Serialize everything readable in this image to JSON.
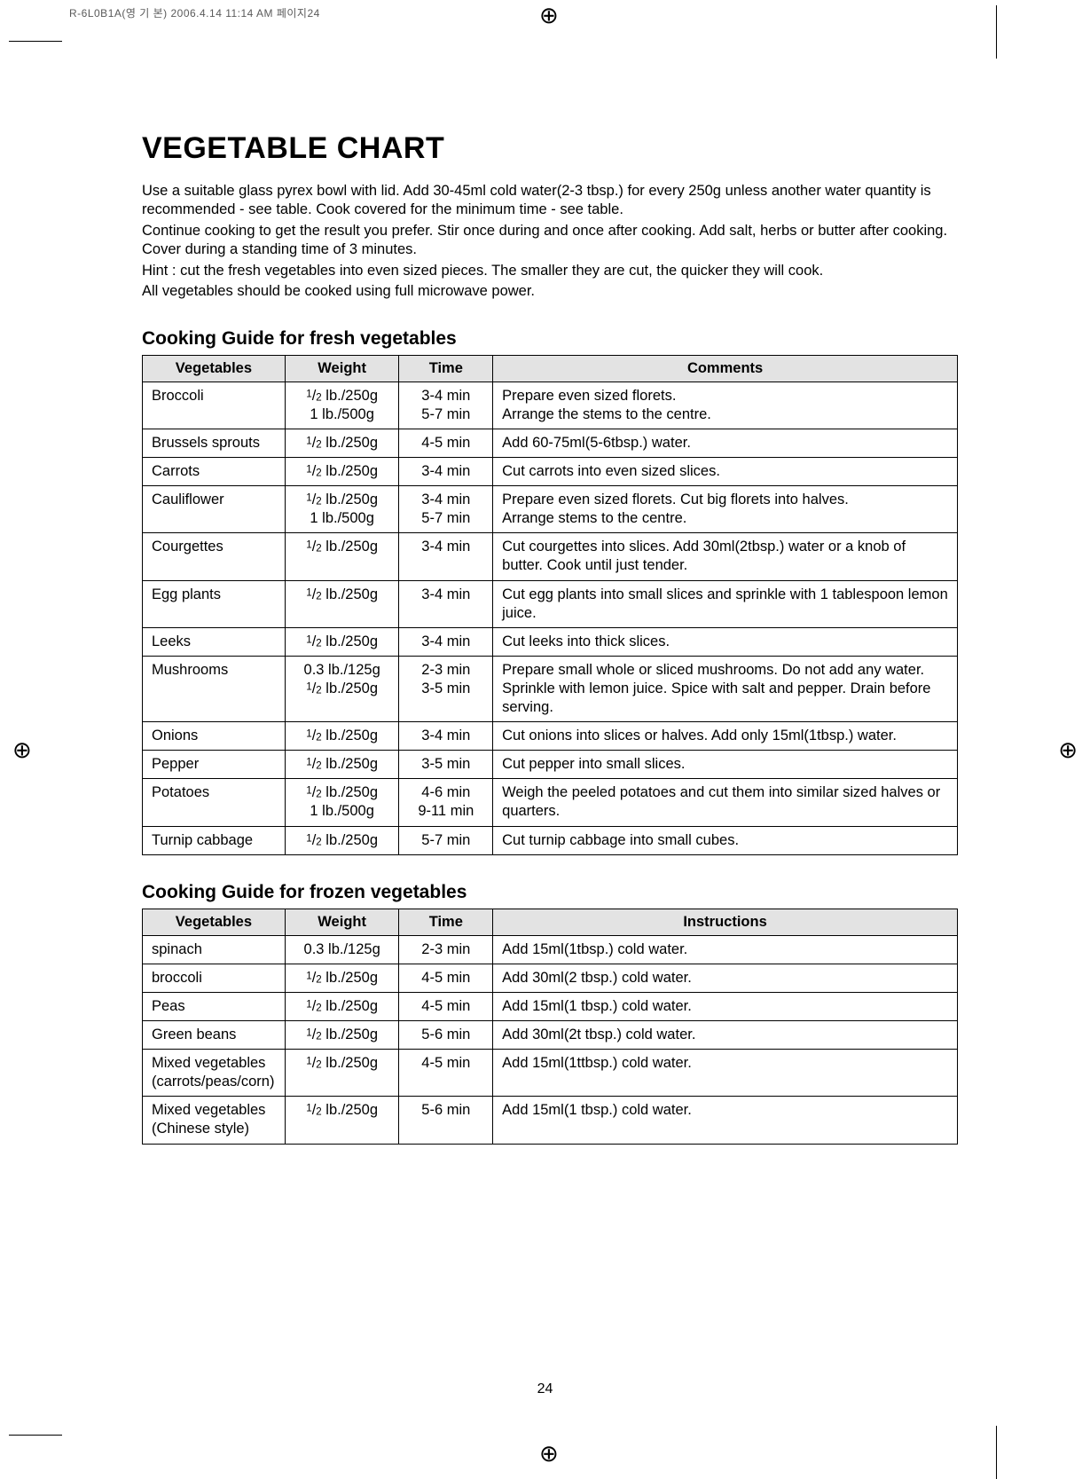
{
  "print_header": "R-6L0B1A(영 기 본)  2006.4.14 11:14 AM  페이지24",
  "title": "VEGETABLE CHART",
  "intro": [
    "Use a suitable glass pyrex bowl with lid. Add 30-45ml cold water(2-3 tbsp.) for every 250g unless another water quantity is recommended - see table. Cook covered for the minimum time - see table.",
    "Continue cooking to get the result you prefer. Stir once during and once after cooking. Add salt, herbs or butter after cooking. Cover during a standing time of 3 minutes.",
    "Hint : cut the fresh vegetables into even sized pieces. The smaller they are cut, the quicker they will cook.",
    "All vegetables should be cooked using full microwave power."
  ],
  "fresh_heading": "Cooking Guide for fresh vegetables",
  "fresh_headers": [
    "Vegetables",
    "Weight",
    "Time",
    "Comments"
  ],
  "fresh_rows": [
    {
      "veg": "Broccoli",
      "weight": "½ lb./250g\n1 lb./500g",
      "time": "3-4 min\n5-7 min",
      "comment": "Prepare even sized florets.\nArrange the stems to the centre."
    },
    {
      "veg": "Brussels sprouts",
      "weight": "½ lb./250g",
      "time": "4-5 min",
      "comment": "Add 60-75ml(5-6tbsp.) water."
    },
    {
      "veg": "Carrots",
      "weight": "½ lb./250g",
      "time": "3-4 min",
      "comment": "Cut carrots into even sized slices."
    },
    {
      "veg": "Cauliflower",
      "weight": "½ lb./250g\n1 lb./500g",
      "time": "3-4 min\n5-7 min",
      "comment": "Prepare even sized florets. Cut big florets into halves.\nArrange stems to the centre."
    },
    {
      "veg": "Courgettes",
      "weight": "½ lb./250g",
      "time": "3-4 min",
      "comment": "Cut courgettes into slices. Add 30ml(2tbsp.) water or a knob of butter. Cook until just tender."
    },
    {
      "veg": "Egg plants",
      "weight": "½ lb./250g",
      "time": "3-4 min",
      "comment": "Cut egg plants into small slices and sprinkle with 1 tablespoon lemon juice."
    },
    {
      "veg": "Leeks",
      "weight": "½ lb./250g",
      "time": "3-4 min",
      "comment": "Cut leeks into thick slices."
    },
    {
      "veg": "Mushrooms",
      "weight": "0.3 lb./125g\n½ lb./250g",
      "time": "2-3 min\n3-5 min",
      "comment": "Prepare small whole or sliced mushrooms. Do not add any water. Sprinkle with lemon juice. Spice with salt and pepper. Drain before serving."
    },
    {
      "veg": "Onions",
      "weight": "½ lb./250g",
      "time": "3-4 min",
      "comment": "Cut onions into slices or halves. Add only 15ml(1tbsp.) water."
    },
    {
      "veg": "Pepper",
      "weight": "½ lb./250g",
      "time": "3-5 min",
      "comment": "Cut pepper into small slices."
    },
    {
      "veg": "Potatoes",
      "weight": "½ lb./250g\n1 lb./500g",
      "time": "4-6 min\n9-11 min",
      "comment": "Weigh the peeled potatoes and cut them into similar sized halves or quarters."
    },
    {
      "veg": "Turnip cabbage",
      "weight": "½ lb./250g",
      "time": "5-7 min",
      "comment": "Cut turnip cabbage into small cubes."
    }
  ],
  "frozen_heading": "Cooking Guide for frozen vegetables",
  "frozen_headers": [
    "Vegetables",
    "Weight",
    "Time",
    "Instructions"
  ],
  "frozen_rows": [
    {
      "veg": "spinach",
      "weight": "0.3 lb./125g",
      "time": "2-3 min",
      "comment": "Add 15ml(1tbsp.) cold water."
    },
    {
      "veg": "broccoli",
      "weight": "½ lb./250g",
      "time": "4-5 min",
      "comment": "Add 30ml(2 tbsp.) cold water."
    },
    {
      "veg": "Peas",
      "weight": "½ lb./250g",
      "time": "4-5 min",
      "comment": "Add 15ml(1 tbsp.) cold water."
    },
    {
      "veg": "Green beans",
      "weight": "½ lb./250g",
      "time": "5-6 min",
      "comment": "Add 30ml(2t tbsp.) cold water."
    },
    {
      "veg": "Mixed vegetables (carrots/peas/corn)",
      "weight": "½ lb./250g",
      "time": "4-5 min",
      "comment": "Add 15ml(1ttbsp.) cold water."
    },
    {
      "veg": "Mixed vegetables (Chinese style)",
      "weight": "½ lb./250g",
      "time": "5-6 min",
      "comment": "Add 15ml(1 tbsp.) cold water."
    }
  ],
  "page_number": "24"
}
